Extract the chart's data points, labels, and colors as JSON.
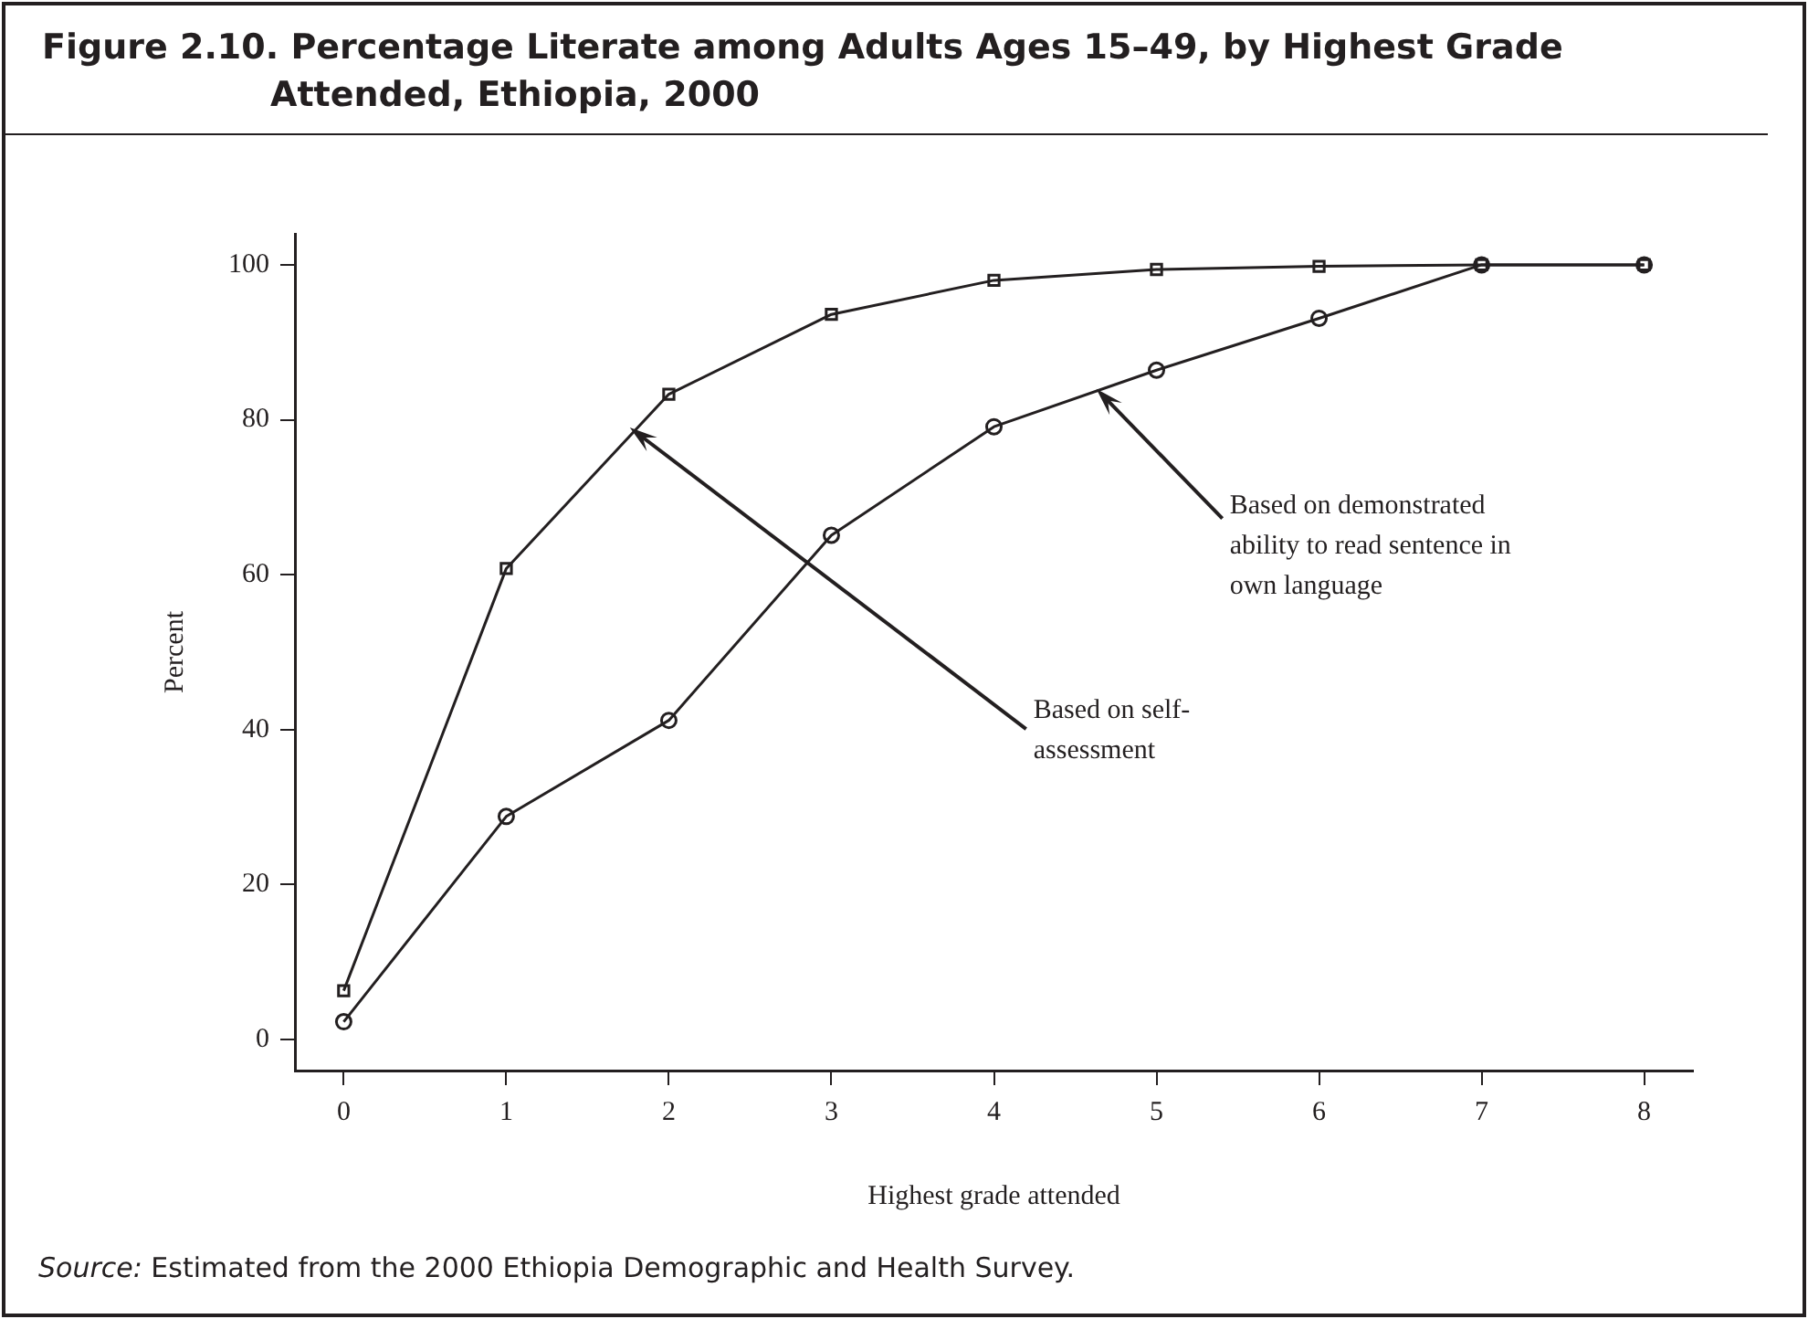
{
  "chart_data": {
    "type": "line",
    "title": "Figure 2.10. Percentage Literate among Adults Ages 15–49, by Highest Grade Attended, Ethiopia, 2000",
    "xlabel": "Highest grade attended",
    "ylabel": "Percent",
    "x": [
      0,
      1,
      2,
      3,
      4,
      5,
      6,
      7,
      8
    ],
    "series": [
      {
        "color": "#231f20",
        "marker": "square",
        "values": [
          6.3,
          60.8,
          83.3,
          93.6,
          98,
          99.4,
          99.8,
          100,
          100
        ]
      },
      {
        "color": "#231f20",
        "marker": "circle",
        "values": [
          2.3,
          28.8,
          41.2,
          65.1,
          79.1,
          86.4,
          93.1,
          100,
          100
        ]
      }
    ],
    "xlim": [
      -0.3,
      8.3
    ],
    "xticks": [
      0,
      1,
      2,
      3,
      4,
      5,
      6,
      7,
      8
    ],
    "ylim": [
      -4,
      104
    ],
    "yticks": [
      0,
      20,
      40,
      60,
      80,
      100
    ],
    "grid": false,
    "legend": false,
    "line_style": "solid",
    "annotations": [
      {
        "text": "Based on self-assessment",
        "x": 1.76,
        "y": 79
      },
      {
        "text": "Based on demonstrated ability to read sentence in own language",
        "x": 4.63,
        "y": 84
      },
      "Source: Estimated from the 2000 Ethiopia Demographic and Health Survey."
    ]
  }
}
